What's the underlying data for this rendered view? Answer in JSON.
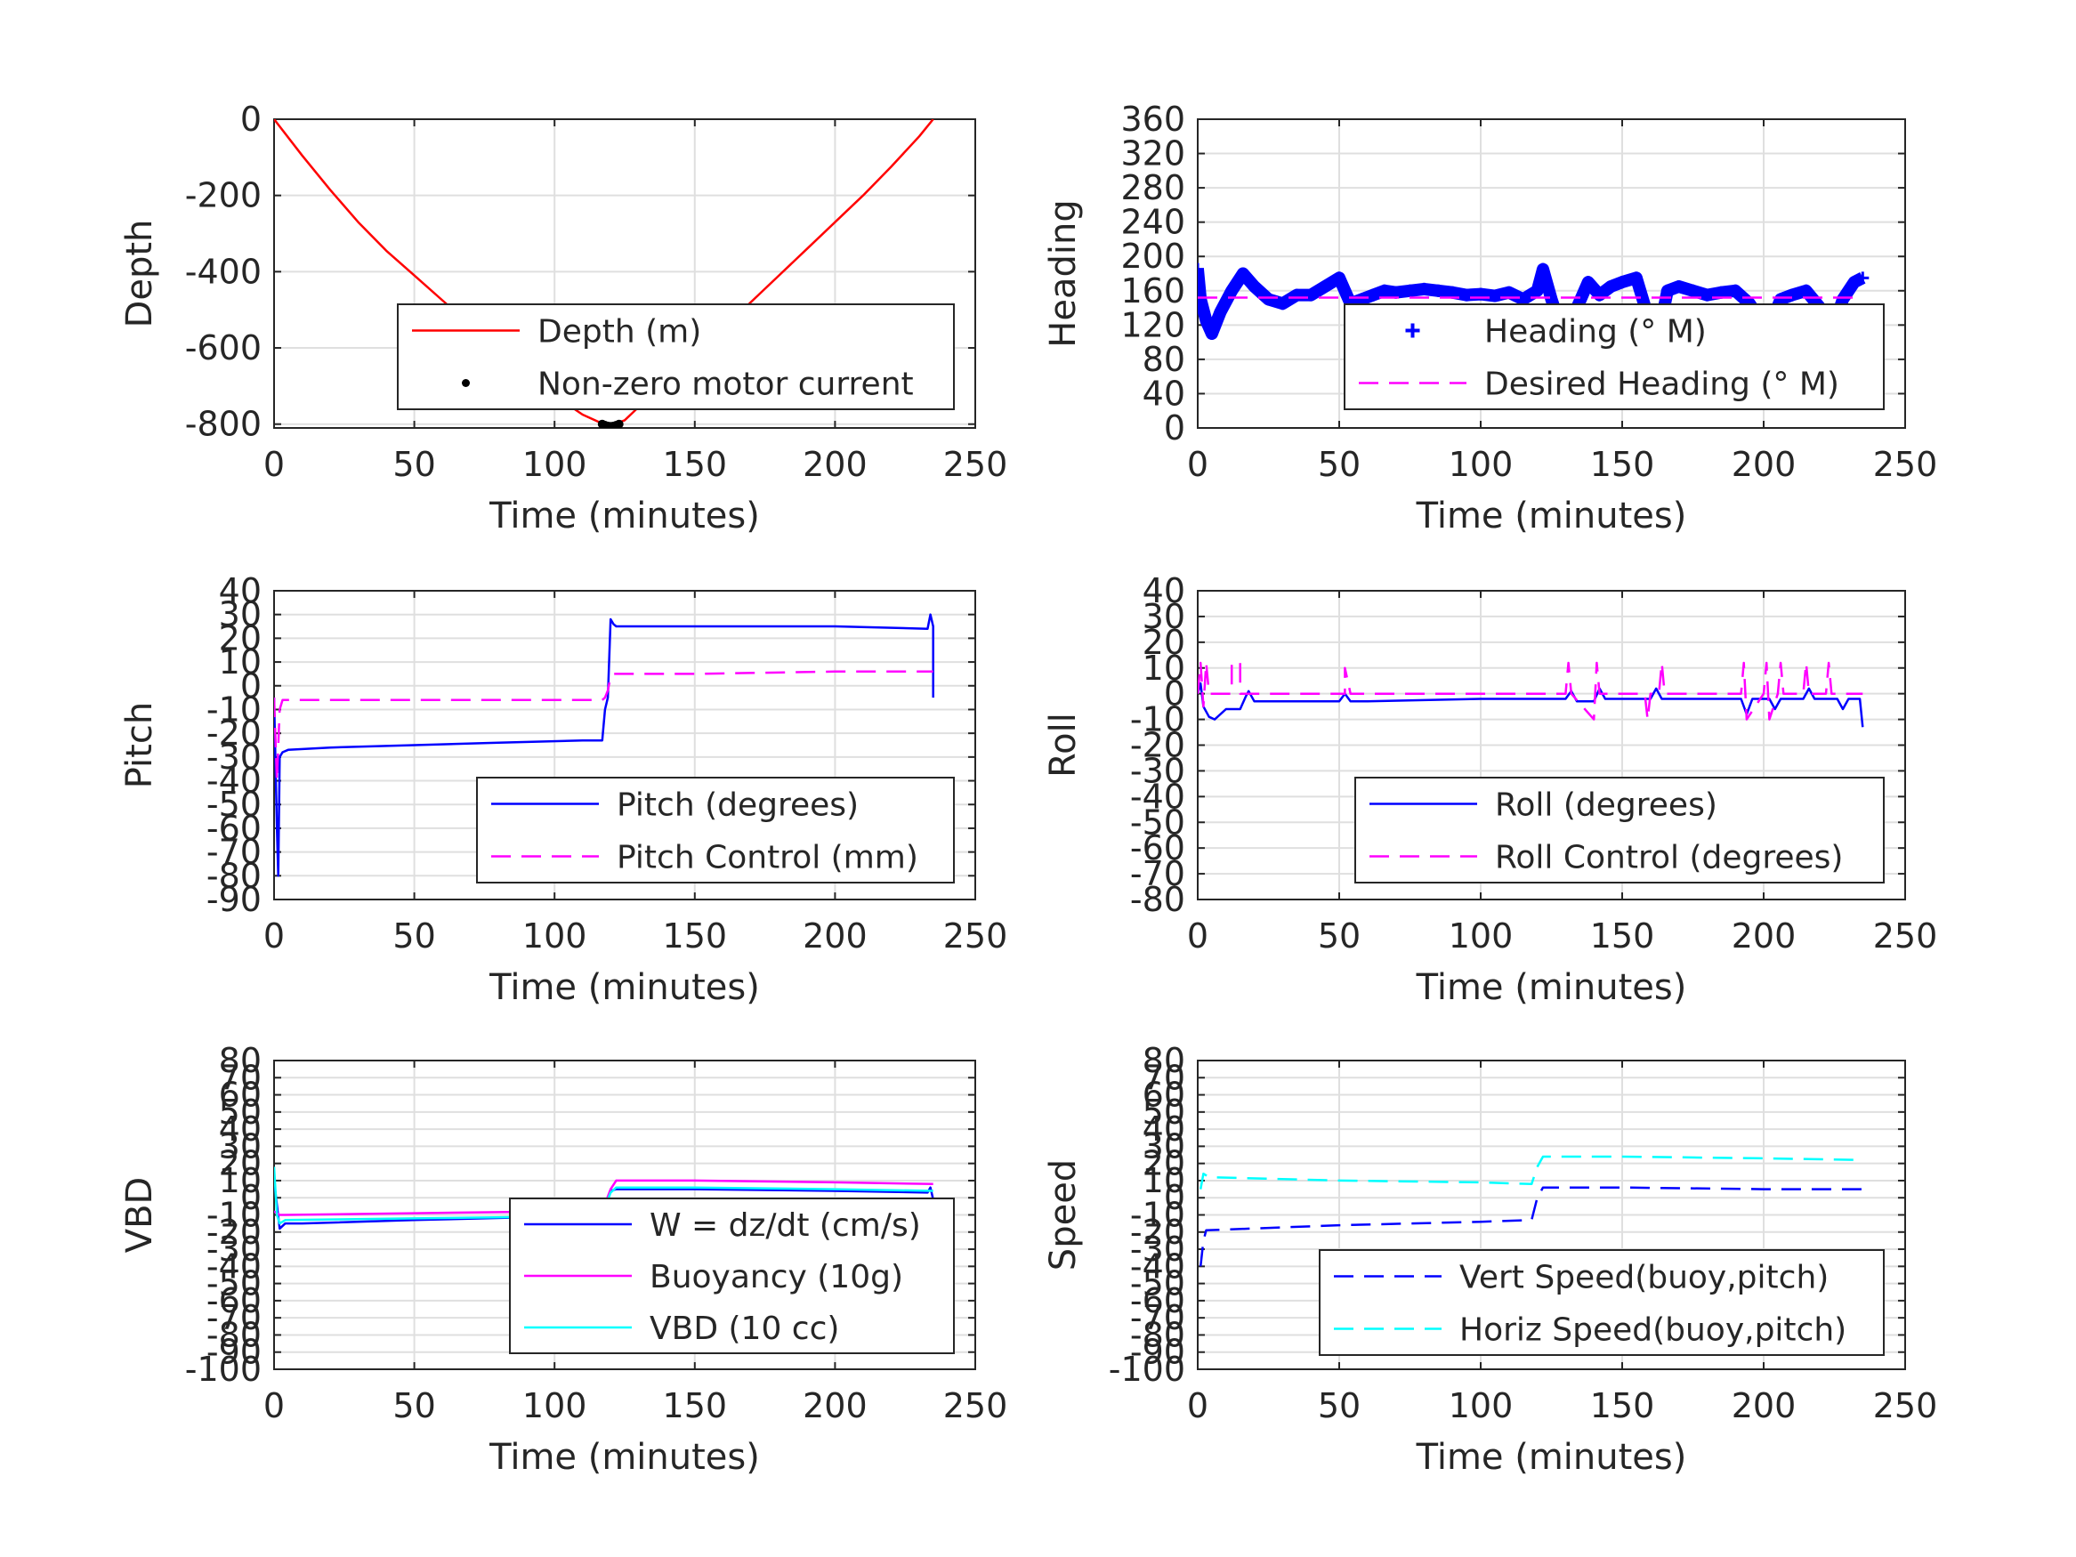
{
  "chart_data": [
    {
      "id": "depth",
      "type": "line",
      "xlabel": "Time (minutes)",
      "ylabel": "Depth",
      "xlim": [
        0,
        250
      ],
      "ylim": [
        -810,
        0
      ],
      "xticks": [
        0,
        50,
        100,
        150,
        200,
        250
      ],
      "yticks": [
        0,
        -200,
        -400,
        -600,
        -800
      ],
      "legend_position": "lower-right",
      "series": [
        {
          "name": "Depth (m)",
          "style": "solid",
          "color": "#ff0000",
          "x": [
            0,
            10,
            20,
            30,
            40,
            50,
            60,
            70,
            80,
            90,
            100,
            110,
            119,
            125,
            130,
            140,
            150,
            160,
            170,
            180,
            190,
            200,
            210,
            220,
            230,
            235
          ],
          "y": [
            0,
            -95,
            -185,
            -270,
            -345,
            -410,
            -475,
            -540,
            -600,
            -665,
            -725,
            -775,
            -805,
            -790,
            -755,
            -690,
            -620,
            -550,
            -480,
            -410,
            -340,
            -270,
            -200,
            -125,
            -45,
            0
          ]
        },
        {
          "name": "Non-zero motor current",
          "style": "dots",
          "color": "#000000",
          "x": [
            117,
            118,
            119,
            120,
            121,
            122,
            123
          ],
          "y": [
            -800,
            -803,
            -805,
            -806,
            -805,
            -803,
            -800
          ]
        }
      ]
    },
    {
      "id": "heading",
      "type": "line",
      "xlabel": "Time (minutes)",
      "ylabel": "Heading",
      "xlim": [
        0,
        250
      ],
      "ylim": [
        0,
        360
      ],
      "xticks": [
        0,
        50,
        100,
        150,
        200,
        250
      ],
      "yticks": [
        0,
        40,
        80,
        120,
        160,
        200,
        240,
        280,
        320,
        360
      ],
      "legend_position": "lower-right",
      "series": [
        {
          "name": "Heading (° M)",
          "style": "plus",
          "color": "#0000ff",
          "x": [
            0,
            1,
            3,
            5,
            8,
            12,
            16,
            20,
            25,
            30,
            35,
            40,
            45,
            50,
            54,
            58,
            62,
            66,
            70,
            75,
            80,
            85,
            90,
            95,
            100,
            105,
            110,
            115,
            120,
            122,
            125,
            128,
            131,
            134,
            138,
            142,
            146,
            150,
            155,
            160,
            163,
            166,
            170,
            175,
            180,
            185,
            190,
            195,
            200,
            203,
            206,
            210,
            215,
            220,
            222,
            225,
            228,
            232,
            235
          ],
          "y": [
            185,
            150,
            125,
            110,
            135,
            160,
            180,
            165,
            150,
            145,
            155,
            155,
            165,
            175,
            145,
            150,
            155,
            160,
            158,
            160,
            162,
            160,
            158,
            155,
            156,
            154,
            158,
            150,
            160,
            185,
            150,
            120,
            115,
            140,
            170,
            155,
            165,
            170,
            175,
            120,
            110,
            160,
            165,
            160,
            155,
            158,
            160,
            145,
            120,
            125,
            150,
            155,
            160,
            140,
            115,
            120,
            150,
            170,
            175
          ]
        },
        {
          "name": "Desired Heading (° M)",
          "style": "dashed",
          "color": "#ff00ff",
          "x": [
            0,
            235
          ],
          "y": [
            152,
            152
          ]
        }
      ]
    },
    {
      "id": "pitch",
      "type": "line",
      "xlabel": "Time (minutes)",
      "ylabel": "Pitch",
      "xlim": [
        0,
        250
      ],
      "ylim": [
        -90,
        40
      ],
      "xticks": [
        0,
        50,
        100,
        150,
        200,
        250
      ],
      "yticks": [
        40,
        30,
        20,
        10,
        0,
        -10,
        -20,
        -30,
        -40,
        -50,
        -60,
        -70,
        -80,
        -90
      ],
      "legend_position": "lower-right",
      "series": [
        {
          "name": "Pitch (degrees)",
          "style": "solid",
          "color": "#0000ff",
          "x": [
            0,
            1,
            1.5,
            2,
            3,
            5,
            20,
            50,
            80,
            110,
            117,
            118,
            119,
            120,
            121,
            122,
            150,
            200,
            233,
            234,
            235,
            235
          ],
          "y": [
            -5,
            -60,
            -80,
            -30,
            -28,
            -27,
            -26,
            -25,
            -24,
            -23,
            -23,
            -10,
            -5,
            28,
            26,
            25,
            25,
            25,
            24,
            30,
            25,
            -5
          ]
        },
        {
          "name": "Pitch Control (mm)",
          "style": "dashed",
          "color": "#ff00ff",
          "x": [
            0,
            1,
            2,
            3,
            50,
            100,
            117,
            118,
            119,
            120,
            121,
            122,
            150,
            200,
            235
          ],
          "y": [
            -5,
            -40,
            -10,
            -6,
            -6,
            -6,
            -6,
            -5,
            -2,
            4,
            5,
            5,
            5,
            6,
            6
          ]
        }
      ]
    },
    {
      "id": "roll",
      "type": "line",
      "xlabel": "Time (minutes)",
      "ylabel": "Roll",
      "xlim": [
        0,
        250
      ],
      "ylim": [
        -80,
        40
      ],
      "xticks": [
        0,
        50,
        100,
        150,
        200,
        250
      ],
      "yticks": [
        40,
        30,
        20,
        10,
        0,
        -10,
        -20,
        -30,
        -40,
        -50,
        -60,
        -70,
        -80
      ],
      "legend_position": "lower-right",
      "series": [
        {
          "name": "Roll (degrees)",
          "style": "solid",
          "color": "#0000ff",
          "x": [
            0,
            1,
            2,
            4,
            6,
            10,
            15,
            17,
            18,
            20,
            30,
            50,
            52,
            54,
            60,
            100,
            130,
            132,
            134,
            140,
            142,
            144,
            160,
            162,
            164,
            192,
            194,
            196,
            202,
            204,
            206,
            214,
            216,
            218,
            226,
            228,
            230,
            234,
            235
          ],
          "y": [
            0,
            4,
            -5,
            -9,
            -10,
            -6,
            -6,
            -1,
            1,
            -3,
            -3,
            -3,
            0,
            -3,
            -3,
            -2,
            -2,
            1,
            -3,
            -3,
            2,
            -2,
            -2,
            2,
            -2,
            -2,
            -8,
            -2,
            -2,
            -6,
            -2,
            -2,
            2,
            -2,
            -2,
            -6,
            -2,
            -2,
            -13
          ]
        },
        {
          "name": "Roll Control (degrees)",
          "style": "dashed",
          "color": "#ff00ff",
          "x": [
            0,
            1,
            2,
            3,
            4,
            12,
            12,
            15,
            15,
            52,
            52,
            54,
            130,
            131,
            132,
            140,
            141,
            142,
            158,
            159,
            160,
            163,
            164,
            165,
            192,
            193,
            194,
            200,
            201,
            202,
            205,
            206,
            207,
            214,
            215,
            216,
            222,
            223,
            224,
            235
          ],
          "y": [
            0,
            12,
            -5,
            12,
            0,
            0,
            12,
            12,
            0,
            0,
            10,
            0,
            0,
            12,
            0,
            -10,
            12,
            0,
            0,
            -10,
            0,
            0,
            12,
            0,
            0,
            12,
            -10,
            0,
            12,
            -10,
            0,
            12,
            0,
            0,
            12,
            0,
            0,
            12,
            0,
            0
          ]
        }
      ]
    },
    {
      "id": "vbd",
      "type": "line",
      "xlabel": "Time (minutes)",
      "ylabel": "VBD",
      "xlim": [
        0,
        250
      ],
      "ylim": [
        -100,
        80
      ],
      "xticks": [
        0,
        50,
        100,
        150,
        200,
        250
      ],
      "yticks": [
        80,
        70,
        60,
        50,
        40,
        30,
        20,
        10,
        0,
        -10,
        -20,
        -30,
        -40,
        -50,
        -60,
        -70,
        -80,
        -90,
        -100
      ],
      "legend_position": "lower-right",
      "series": [
        {
          "name": "W = dz/dt (cm/s)",
          "style": "solid",
          "color": "#0000ff",
          "x": [
            0,
            2,
            4,
            10,
            50,
            100,
            117,
            120,
            122,
            150,
            200,
            233,
            234,
            235
          ],
          "y": [
            10,
            -18,
            -15,
            -15,
            -13,
            -11,
            -10,
            4,
            5,
            5,
            4,
            3,
            6,
            -1
          ]
        },
        {
          "name": "Buoyancy (10g)",
          "style": "solid",
          "color": "#ff00ff",
          "x": [
            0,
            2,
            4,
            50,
            100,
            117,
            120,
            122,
            150,
            200,
            235
          ],
          "y": [
            -8,
            -10,
            -10,
            -9,
            -8,
            -8,
            5,
            10,
            10,
            9,
            8
          ]
        },
        {
          "name": "VBD (10 cc)",
          "style": "solid",
          "color": "#00ffff",
          "x": [
            0,
            1,
            2,
            4,
            50,
            100,
            117,
            120,
            122,
            150,
            200,
            235
          ],
          "y": [
            18,
            -10,
            -15,
            -13,
            -12,
            -11,
            -10,
            3,
            6,
            6,
            5,
            4
          ]
        }
      ]
    },
    {
      "id": "speed",
      "type": "line",
      "xlabel": "Time (minutes)",
      "ylabel": "Speed",
      "xlim": [
        0,
        250
      ],
      "ylim": [
        -100,
        80
      ],
      "xticks": [
        0,
        50,
        100,
        150,
        200,
        250
      ],
      "yticks": [
        80,
        70,
        60,
        50,
        40,
        30,
        20,
        10,
        0,
        -10,
        -20,
        -30,
        -40,
        -50,
        -60,
        -70,
        -80,
        -90,
        -100
      ],
      "legend_position": "lower-right",
      "series": [
        {
          "name": "Vert Speed(buoy,pitch)",
          "style": "dashed",
          "color": "#0000ff",
          "x": [
            1,
            2,
            3,
            50,
            100,
            118,
            120,
            122,
            150,
            200,
            235
          ],
          "y": [
            -40,
            -25,
            -19,
            -16,
            -14,
            -13,
            0,
            6,
            6,
            5,
            5
          ]
        },
        {
          "name": "Horiz Speed(buoy,pitch)",
          "style": "dashed",
          "color": "#00ffff",
          "x": [
            1,
            2,
            4,
            50,
            100,
            118,
            120,
            122,
            150,
            200,
            235
          ],
          "y": [
            5,
            14,
            12,
            10,
            9,
            8,
            18,
            24,
            24,
            23,
            22
          ]
        }
      ]
    }
  ]
}
